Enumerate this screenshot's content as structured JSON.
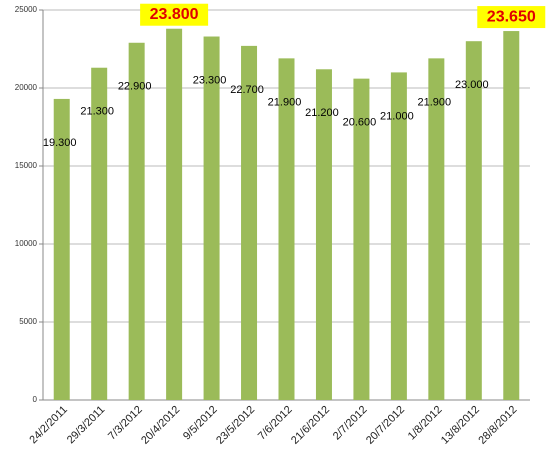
{
  "chart_data": {
    "type": "bar",
    "categories": [
      "24/2/2011",
      "29/3/2011",
      "7/3/2012",
      "20/4/2012",
      "9/5/2012",
      "23/5/2012",
      "7/6/2012",
      "21/6/2012",
      "2/7/2012",
      "20/7/2012",
      "1/8/2012",
      "13/8/2012",
      "28/8/2012"
    ],
    "values": [
      19300,
      21300,
      22900,
      23800,
      23300,
      22700,
      21900,
      21200,
      20600,
      21000,
      21900,
      23000,
      23650
    ],
    "value_labels": [
      "19.300",
      "21.300",
      "22.900",
      "23.800",
      "23.300",
      "22.700",
      "21.900",
      "21.200",
      "20.600",
      "21.000",
      "21.900",
      "23.000",
      "23.650"
    ],
    "highlighted": [
      3,
      12
    ],
    "color": "#9bbb59",
    "ylim": [
      0,
      25000
    ],
    "yticks": [
      0,
      5000,
      10000,
      15000,
      20000,
      25000
    ],
    "grid": true
  }
}
